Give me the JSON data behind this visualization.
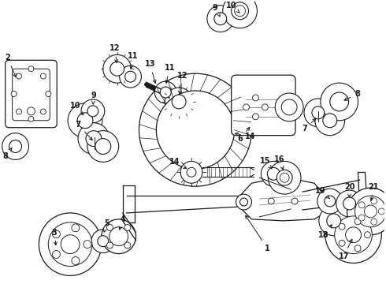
{
  "bg_color": "#ffffff",
  "fig_width": 4.9,
  "fig_height": 3.6,
  "dpi": 100,
  "lc": "#1a1a1a",
  "lw": 0.7
}
